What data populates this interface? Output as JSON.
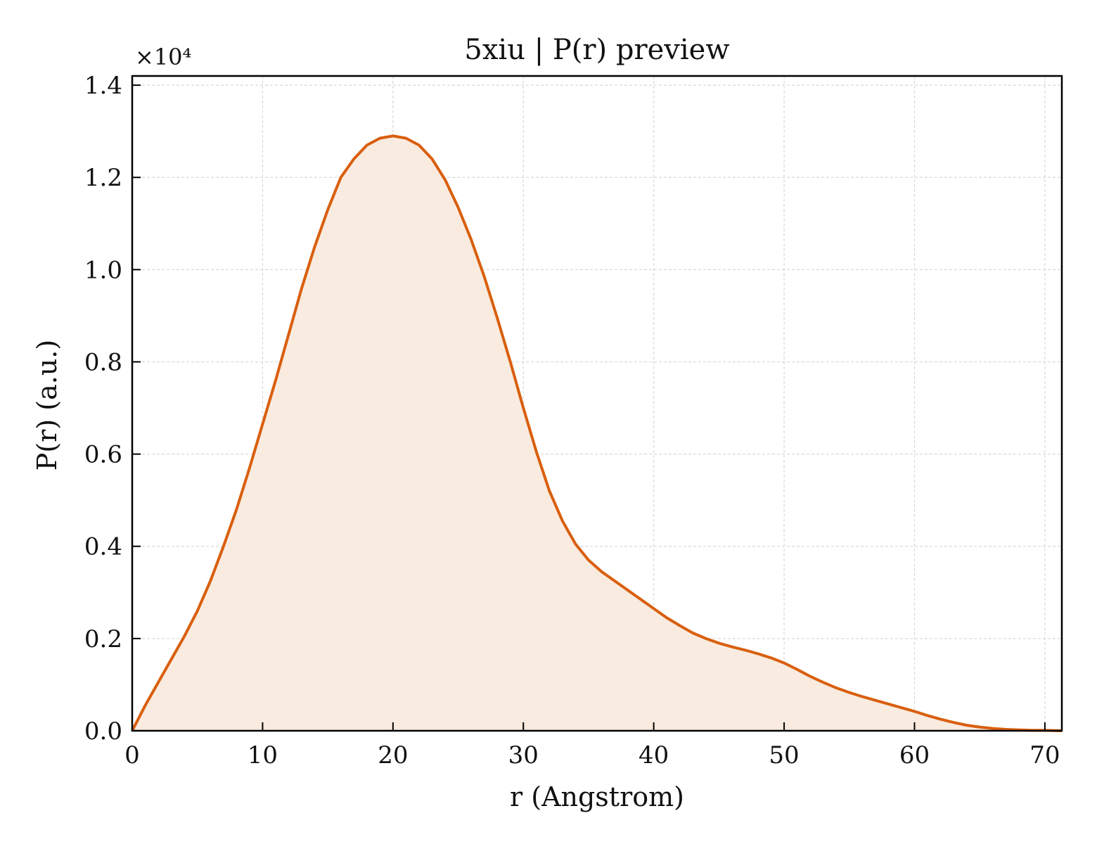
{
  "chart_data": {
    "type": "area",
    "title": "5xiu | P(r) preview",
    "xlabel": "r (Angstrom)",
    "ylabel": "P(r) (a.u.)",
    "y_multiplier_label": "×10⁴",
    "xlim": [
      0,
      71.3
    ],
    "ylim": [
      0,
      1.42
    ],
    "xticks": [
      0,
      10,
      20,
      30,
      40,
      50,
      60,
      70
    ],
    "yticks": [
      0.0,
      0.2,
      0.4,
      0.6,
      0.8,
      1.0,
      1.2,
      1.4
    ],
    "xtick_labels": [
      "0",
      "10",
      "20",
      "30",
      "40",
      "50",
      "60",
      "70"
    ],
    "ytick_labels": [
      "0.0",
      "0.2",
      "0.4",
      "0.6",
      "0.8",
      "1.0",
      "1.2",
      "1.4"
    ],
    "grid": true,
    "line_color": "#d95f0e",
    "fill_color": "#f9ebe0",
    "x": [
      0,
      1,
      2,
      3,
      4,
      5,
      6,
      7,
      8,
      9,
      10,
      11,
      12,
      13,
      14,
      15,
      16,
      17,
      18,
      19,
      20,
      21,
      22,
      23,
      24,
      25,
      26,
      27,
      28,
      29,
      30,
      31,
      32,
      33,
      34,
      35,
      36,
      37,
      38,
      39,
      40,
      41,
      42,
      43,
      44,
      45,
      46,
      47,
      48,
      49,
      50,
      51,
      52,
      53,
      54,
      55,
      56,
      57,
      58,
      59,
      60,
      61,
      62,
      63,
      64,
      65,
      66,
      67,
      68,
      69,
      70,
      71.3
    ],
    "y": [
      0.0,
      0.055,
      0.105,
      0.155,
      0.205,
      0.26,
      0.325,
      0.4,
      0.48,
      0.57,
      0.665,
      0.76,
      0.86,
      0.96,
      1.05,
      1.13,
      1.2,
      1.24,
      1.27,
      1.285,
      1.29,
      1.285,
      1.27,
      1.24,
      1.195,
      1.135,
      1.065,
      0.985,
      0.895,
      0.8,
      0.7,
      0.605,
      0.52,
      0.455,
      0.405,
      0.37,
      0.345,
      0.325,
      0.305,
      0.285,
      0.265,
      0.245,
      0.228,
      0.212,
      0.2,
      0.19,
      0.182,
      0.175,
      0.167,
      0.158,
      0.147,
      0.133,
      0.118,
      0.105,
      0.093,
      0.083,
      0.074,
      0.066,
      0.058,
      0.05,
      0.042,
      0.033,
      0.025,
      0.018,
      0.012,
      0.008,
      0.005,
      0.003,
      0.002,
      0.001,
      0.001,
      0.0
    ]
  }
}
